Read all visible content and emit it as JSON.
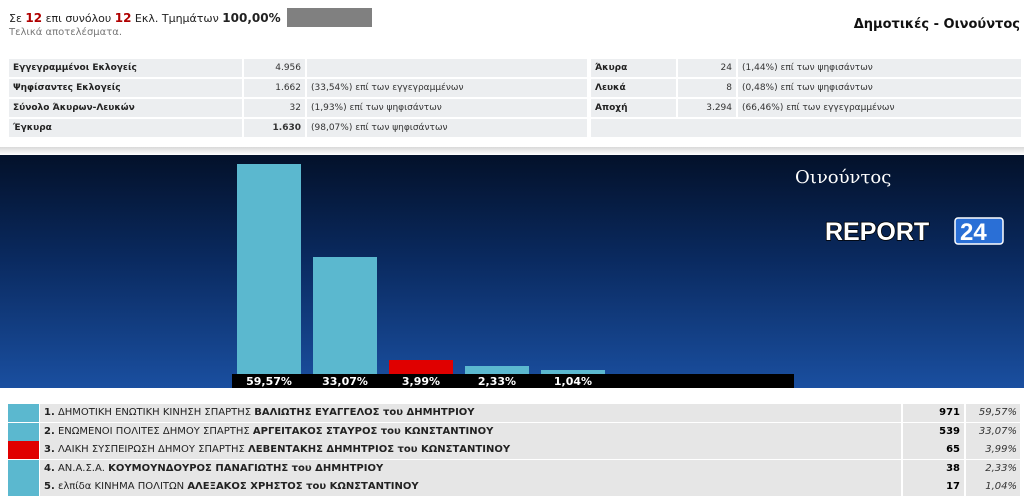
{
  "header": {
    "prefix": "Σε",
    "counted": "12",
    "mid": "επι συνόλου",
    "total": "12",
    "suffix": "Εκλ. Τμημάτων",
    "percent": "100,00%",
    "final_note": "Τελικά αποτελέσματα.",
    "title": "Δημοτικές - Οινούντος"
  },
  "stats_left": [
    {
      "label": "Εγγεγραμμένοι Εκλογείς",
      "value": "4.956",
      "note": ""
    },
    {
      "label": "Ψηφίσαντες Εκλογείς",
      "value": "1.662",
      "note": "(33,54%) επί των εγγεγραμμένων"
    },
    {
      "label": "Σύνολο Άκυρων-Λευκών",
      "value": "32",
      "note": "(1,93%) επί των ψηφισάντων"
    },
    {
      "label": "Έγκυρα",
      "value": "1.630",
      "note": "(98,07%) επί των ψηφισάντων"
    }
  ],
  "stats_right": [
    {
      "label": "Άκυρα",
      "value": "24",
      "note": "(1,44%) επί των ψηφισάντων"
    },
    {
      "label": "Λευκά",
      "value": "8",
      "note": "(0,48%) επί των ψηφισάντων"
    },
    {
      "label": "Αποχή",
      "value": "3.294",
      "note": "(66,46%) επί των εγγεγραμμένων"
    }
  ],
  "chart_title": "Οινούντος",
  "logo": {
    "text_main": "REPORT",
    "text_num": "24"
  },
  "chart_data": {
    "type": "bar",
    "categories": [
      "1",
      "2",
      "3",
      "4",
      "5"
    ],
    "values": [
      59.57,
      33.07,
      3.99,
      2.33,
      1.04
    ],
    "labels": [
      "59,57%",
      "33,07%",
      "3,99%",
      "2,33%",
      "1,04%"
    ],
    "colors": [
      "#5bb8cf",
      "#5bb8cf",
      "#e00000",
      "#5bb8cf",
      "#5bb8cf"
    ],
    "ylim": [
      0,
      59.57
    ]
  },
  "results": [
    {
      "num": "1.",
      "party": "ΔΗΜΟΤΙΚΗ ΕΝΩΤΙΚΗ ΚΙΝΗΣΗ ΣΠΑΡΤΗΣ",
      "candidate": "ΒΑΛΙΩΤΗΣ ΕΥΑΓΓΕΛΟΣ του ΔΗΜΗΤΡΙΟΥ",
      "votes": "971",
      "pct": "59,57%",
      "color": "#5bb8cf"
    },
    {
      "num": "2.",
      "party": "ΕΝΩΜΕΝΟΙ ΠΟΛΙΤΕΣ ΔΗΜΟΥ ΣΠΑΡΤΗΣ",
      "candidate": "ΑΡΓΕΙΤΑΚΟΣ ΣΤΑΥΡΟΣ του ΚΩΝΣΤΑΝΤΙΝΟΥ",
      "votes": "539",
      "pct": "33,07%",
      "color": "#5bb8cf"
    },
    {
      "num": "3.",
      "party": "ΛΑΙΚΗ ΣΥΣΠΕΙΡΩΣΗ ΔΗΜΟΥ ΣΠΑΡΤΗΣ",
      "candidate": "ΛΕΒΕΝΤΑΚΗΣ ΔΗΜΗΤΡΙΟΣ του ΚΩΝΣΤΑΝΤΙΝΟΥ",
      "votes": "65",
      "pct": "3,99%",
      "color": "#e00000"
    },
    {
      "num": "4.",
      "party": "ΑΝ.Α.Σ.Α.",
      "candidate": "ΚΟΥΜΟΥΝΔΟΥΡΟΣ ΠΑΝΑΓΙΩΤΗΣ του ΔΗΜΗΤΡΙΟΥ",
      "votes": "38",
      "pct": "2,33%",
      "color": "#5bb8cf"
    },
    {
      "num": "5.",
      "party": "ελπίδα ΚΙΝΗΜΑ ΠΟΛΙΤΩΝ",
      "candidate": "ΑΛΕΞΑΚΟΣ ΧΡΗΣΤΟΣ του ΚΩΝΣΤΑΝΤΙΝΟΥ",
      "votes": "17",
      "pct": "1,04%",
      "color": "#5bb8cf"
    }
  ]
}
